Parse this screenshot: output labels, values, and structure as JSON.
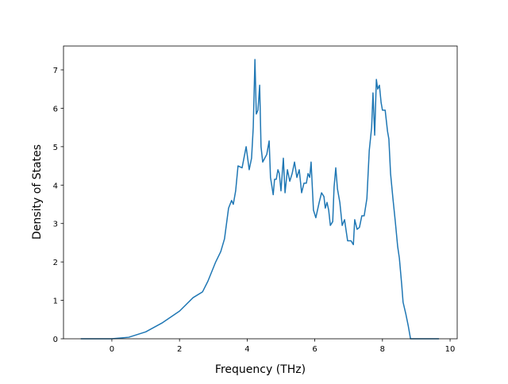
{
  "chart_data": {
    "type": "line",
    "x_label": "Frequency (THz)",
    "y_label": "Density of States",
    "x": [
      -0.92,
      0,
      0.5,
      1,
      1.5,
      2,
      2.4,
      2.68,
      2.84,
      3.07,
      3.22,
      3.33,
      3.45,
      3.54,
      3.59,
      3.66,
      3.73,
      3.85,
      3.97,
      4.06,
      4.13,
      4.18,
      4.23,
      4.27,
      4.32,
      4.37,
      4.41,
      4.46,
      4.58,
      4.65,
      4.69,
      4.77,
      4.81,
      4.86,
      4.91,
      4.95,
      5.0,
      5.07,
      5.12,
      5.19,
      5.26,
      5.33,
      5.4,
      5.47,
      5.54,
      5.61,
      5.68,
      5.75,
      5.8,
      5.85,
      5.89,
      5.96,
      6.03,
      6.13,
      6.2,
      6.27,
      6.31,
      6.36,
      6.41,
      6.46,
      6.53,
      6.57,
      6.62,
      6.67,
      6.74,
      6.81,
      6.88,
      6.92,
      6.97,
      7.07,
      7.14,
      7.18,
      7.25,
      7.32,
      7.39,
      7.46,
      7.54,
      7.61,
      7.68,
      7.72,
      7.77,
      7.82,
      7.86,
      7.91,
      7.96,
      8.0,
      8.08,
      8.15,
      8.19,
      8.24,
      8.31,
      8.38,
      8.45,
      8.5,
      8.57,
      8.61,
      8.69,
      8.76,
      8.83,
      9.67
    ],
    "series": [
      {
        "color": "#1f77b4",
        "values": [
          0,
          0,
          0.04,
          0.18,
          0.42,
          0.72,
          1.07,
          1.22,
          1.5,
          2.0,
          2.27,
          2.6,
          3.4,
          3.6,
          3.5,
          3.85,
          4.5,
          4.45,
          5.0,
          4.4,
          4.7,
          5.5,
          7.27,
          5.85,
          5.95,
          6.6,
          5.0,
          4.6,
          4.8,
          5.15,
          4.2,
          3.75,
          4.15,
          4.15,
          4.4,
          4.3,
          3.85,
          4.7,
          3.8,
          4.4,
          4.1,
          4.3,
          4.6,
          4.2,
          4.4,
          3.8,
          4.05,
          4.05,
          4.3,
          4.2,
          4.6,
          3.35,
          3.15,
          3.55,
          3.8,
          3.7,
          3.4,
          3.55,
          3.35,
          2.95,
          3.05,
          3.95,
          4.45,
          3.9,
          3.55,
          2.95,
          3.1,
          2.85,
          2.55,
          2.55,
          2.45,
          3.1,
          2.85,
          2.9,
          3.2,
          3.2,
          3.65,
          4.9,
          5.5,
          6.4,
          5.3,
          6.75,
          6.5,
          6.6,
          6.15,
          5.95,
          5.95,
          5.4,
          5.2,
          4.3,
          3.65,
          3.05,
          2.4,
          2.1,
          1.4,
          0.95,
          0.65,
          0.35,
          0,
          0
        ]
      }
    ],
    "xlim": [
      -1.43,
      10.21
    ],
    "ylim": [
      0,
      7.62
    ],
    "xticks": [
      0,
      2,
      4,
      6,
      8,
      10
    ],
    "yticks": [
      0,
      1,
      2,
      3,
      4,
      5,
      6,
      7
    ],
    "grid": false
  }
}
